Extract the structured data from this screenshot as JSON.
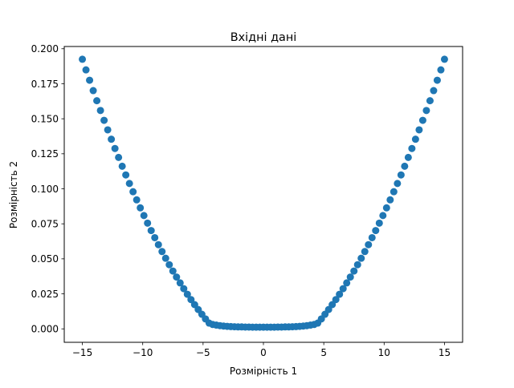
{
  "chart_data": {
    "type": "scatter",
    "title": "Вхідні дані",
    "xlabel": "Розмірність 1",
    "ylabel": "Розмірність 2",
    "xlim": [
      -16.5,
      16.5
    ],
    "ylim": [
      -0.0096,
      0.2016
    ],
    "xticks": [
      -15,
      -10,
      -5,
      0,
      5,
      10,
      15
    ],
    "xtick_labels": [
      "−15",
      "−10",
      "−5",
      "0",
      "5",
      "10",
      "15"
    ],
    "yticks": [
      0.0,
      0.025,
      0.05,
      0.075,
      0.1,
      0.125,
      0.15,
      0.175,
      0.2
    ],
    "ytick_labels": [
      "0.000",
      "0.025",
      "0.050",
      "0.075",
      "0.100",
      "0.125",
      "0.150",
      "0.175",
      "0.200"
    ],
    "grid": false,
    "legend": "none",
    "marker_color": "#1f77b4",
    "series": [
      {
        "x": [
          -15.0,
          -14.7,
          -14.4,
          -14.1,
          -13.8,
          -13.5,
          -13.2,
          -12.9,
          -12.6,
          -12.3,
          -12.0,
          -11.7,
          -11.4,
          -11.1,
          -10.8,
          -10.5,
          -10.2,
          -9.9,
          -9.6,
          -9.3,
          -9.0,
          -8.7,
          -8.4,
          -8.1,
          -7.8,
          -7.5,
          -7.2,
          -6.9,
          -6.6,
          -6.3,
          -6.0,
          -5.7,
          -5.4,
          -5.1,
          -4.8,
          -4.5,
          -4.2,
          -3.9,
          -3.6,
          -3.3,
          -3.0,
          -2.7,
          -2.4,
          -2.1,
          -1.8,
          -1.5,
          -1.2,
          -0.9,
          -0.6,
          -0.3,
          0.0,
          0.3,
          0.6,
          0.9,
          1.2,
          1.5,
          1.8,
          2.1,
          2.4,
          2.7,
          3.0,
          3.3,
          3.6,
          3.9,
          4.2,
          4.5,
          4.8,
          5.1,
          5.4,
          5.7,
          6.0,
          6.3,
          6.6,
          6.9,
          7.2,
          7.5,
          7.8,
          8.1,
          8.4,
          8.7,
          9.0,
          9.3,
          9.6,
          9.9,
          10.2,
          10.5,
          10.8,
          11.1,
          11.4,
          11.7,
          12.0,
          12.3,
          12.6,
          12.9,
          13.2,
          13.5,
          13.8,
          14.1,
          14.4,
          14.7,
          15.0
        ],
        "y": [
          0.1925,
          0.1849,
          0.1775,
          0.1701,
          0.1629,
          0.1559,
          0.1489,
          0.1421,
          0.1354,
          0.1288,
          0.1224,
          0.1161,
          0.1099,
          0.1038,
          0.0979,
          0.0921,
          0.0864,
          0.0809,
          0.0755,
          0.0702,
          0.0651,
          0.0601,
          0.0552,
          0.0504,
          0.0458,
          0.0413,
          0.037,
          0.0328,
          0.0287,
          0.0247,
          0.0209,
          0.0173,
          0.0138,
          0.0104,
          0.0071,
          0.0041,
          0.0031,
          0.0027,
          0.0023,
          0.002,
          0.0018,
          0.0016,
          0.0015,
          0.0014,
          0.0014,
          0.0013,
          0.0013,
          0.0012,
          0.0012,
          0.0012,
          0.0012,
          0.0012,
          0.0012,
          0.0012,
          0.0013,
          0.0013,
          0.0014,
          0.0014,
          0.0015,
          0.0016,
          0.0018,
          0.002,
          0.0023,
          0.0027,
          0.0031,
          0.0041,
          0.0071,
          0.0104,
          0.0138,
          0.0173,
          0.0209,
          0.0247,
          0.0287,
          0.0328,
          0.037,
          0.0413,
          0.0458,
          0.0504,
          0.0552,
          0.0601,
          0.0651,
          0.0702,
          0.0755,
          0.0809,
          0.0864,
          0.0921,
          0.0979,
          0.1038,
          0.1099,
          0.1161,
          0.1224,
          0.1288,
          0.1354,
          0.1421,
          0.1489,
          0.1559,
          0.1629,
          0.1701,
          0.1775,
          0.1849,
          0.1925
        ]
      }
    ]
  }
}
